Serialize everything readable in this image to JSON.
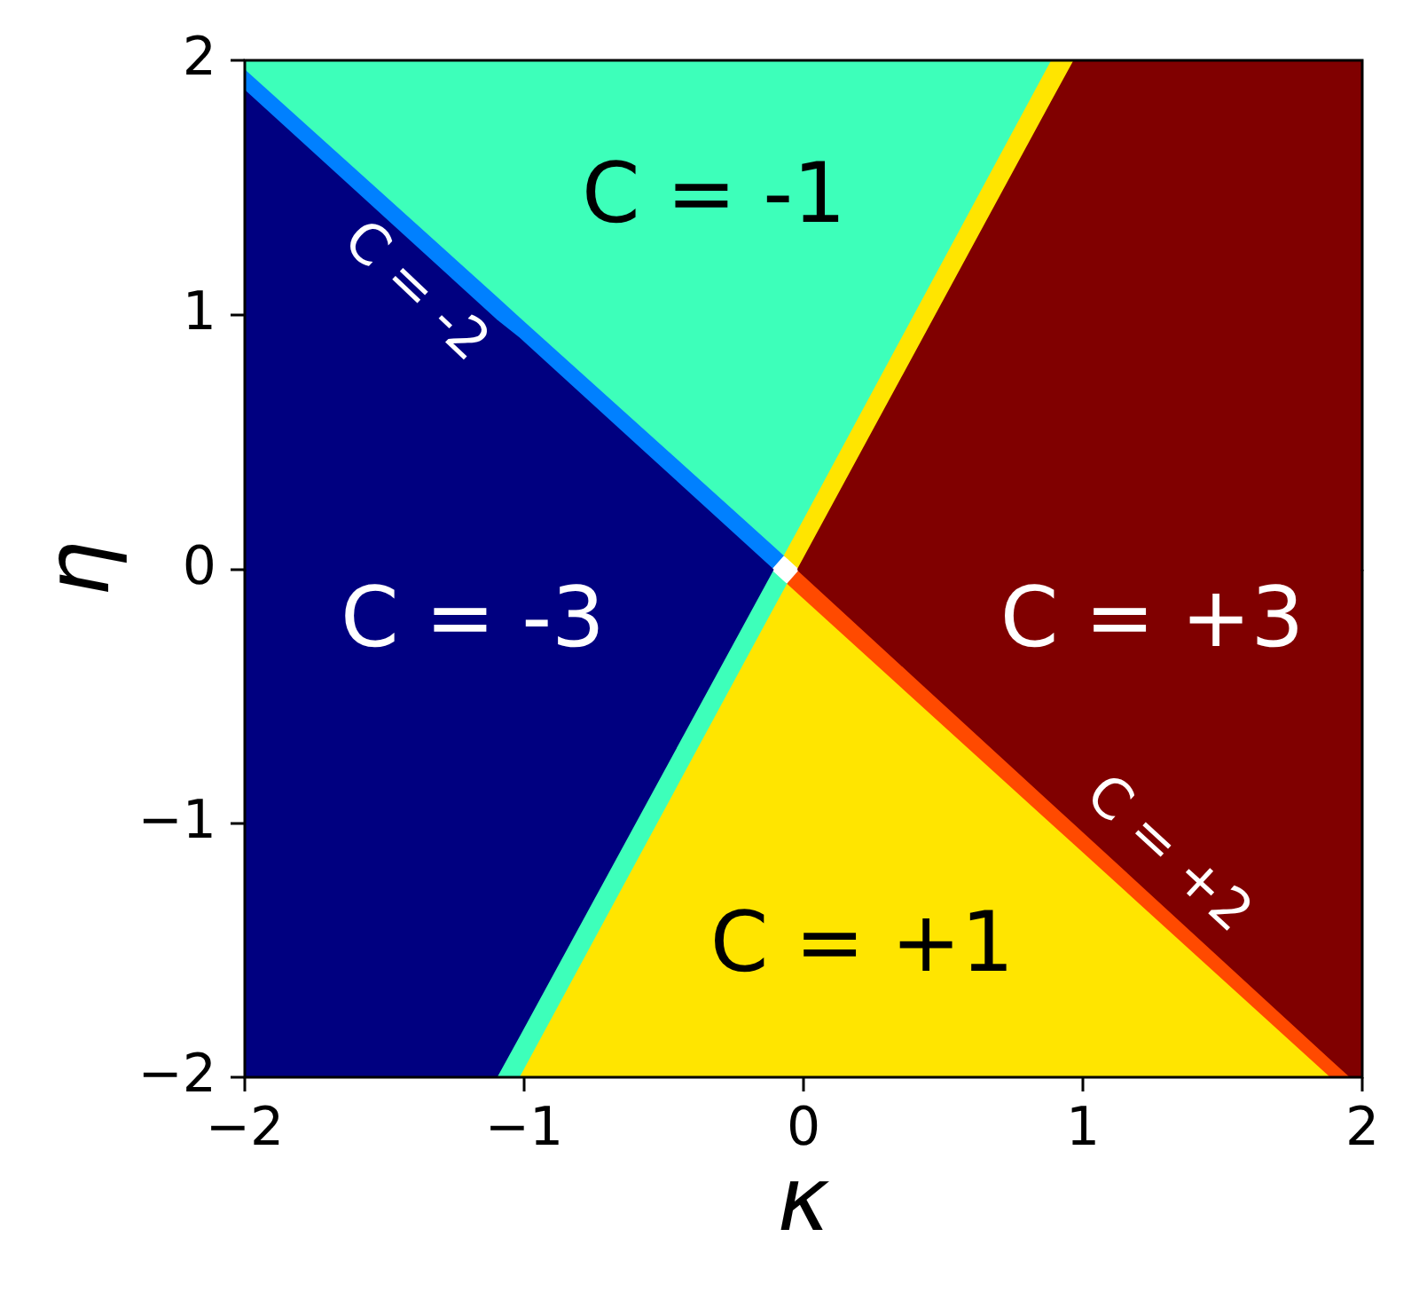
{
  "chart_data": [
    {
      "type": "area",
      "stacked": true,
      "ylabel": "η",
      "xlim": [
        -2,
        2
      ],
      "ylim": [
        0,
        2
      ],
      "yticks": [
        0,
        1,
        2
      ],
      "tick_labels": "y",
      "x": [
        -2,
        -1.1,
        -1.02,
        -0.11,
        -0.07,
        -0.06,
        -0.02,
        0.89,
        0.97,
        1.89,
        1.96,
        2
      ],
      "series": [
        {
          "color": "#000080",
          "values": [
            1.88,
            0.98,
            0.91,
            0,
            null,
            null,
            null,
            null,
            null,
            null,
            null,
            null
          ]
        },
        {
          "color": "#800000",
          "values": [
            null,
            null,
            null,
            null,
            null,
            null,
            0,
            1.84,
            2,
            2,
            2,
            2
          ]
        },
        {
          "color": "#ffffff",
          "values": [
            null,
            null,
            null,
            0,
            0.05,
            0.04,
            0,
            null,
            null,
            null,
            null,
            null
          ]
        },
        {
          "name": "C = -2",
          "color": "#0080ff",
          "values": [
            0.08,
            0.09,
            0.08,
            0.09,
            0,
            null,
            null,
            null,
            null,
            null,
            null,
            null
          ]
        },
        {
          "color": "#ffe500",
          "values": [
            null,
            null,
            null,
            null,
            0,
            0.03,
            0.15,
            0.16,
            0,
            null,
            null,
            null
          ]
        },
        {
          "name": "C = -1",
          "color": "#3dffba",
          "values": [
            0.04,
            0.93,
            1.01,
            1.91,
            1.95,
            1.93,
            1.85,
            0,
            null,
            null,
            null,
            null
          ]
        }
      ]
    },
    {
      "type": "area",
      "stacked": true,
      "xlabel": "κ",
      "xlim": [
        -2,
        2
      ],
      "ylim": [
        -2,
        0
      ],
      "xticks": [
        {
          "value": -2,
          "label": "−2"
        },
        {
          "value": -1,
          "label": "−1"
        },
        0,
        1,
        2
      ],
      "yticks": [
        {
          "value": -2,
          "label": "−2"
        },
        {
          "value": -1,
          "label": "−1"
        }
      ],
      "x": [
        -2,
        -1.1,
        -1.02,
        -0.11,
        -0.07,
        -0.06,
        -0.02,
        0.89,
        0.97,
        1.89,
        1.96,
        2
      ],
      "series": [
        {
          "name": "C = -3",
          "color": "#000080",
          "values": [
            -2,
            -2,
            -1.84,
            0,
            null,
            null,
            null,
            null,
            null,
            null,
            null,
            null
          ]
        },
        {
          "name": "C = +3",
          "color": "#800000",
          "values": [
            null,
            null,
            null,
            null,
            null,
            null,
            0,
            -0.92,
            -1.0,
            -1.93,
            -2,
            -2
          ]
        },
        {
          "color": "#ffffff",
          "values": [
            null,
            null,
            null,
            0,
            -0.04,
            -0.05,
            0,
            null,
            null,
            null,
            null,
            null
          ]
        },
        {
          "color": "#3dffba",
          "values": [
            null,
            0,
            -0.16,
            -0.15,
            -0.03,
            0,
            null,
            null,
            null,
            null,
            null,
            null
          ]
        },
        {
          "name": "C = +2",
          "color": "#ff4a00",
          "values": [
            null,
            null,
            null,
            null,
            null,
            0,
            -0.09,
            -0.08,
            -0.08,
            -0.07,
            0,
            null
          ]
        },
        {
          "name": "C = +1",
          "color": "#ffe500",
          "values": [
            null,
            null,
            0,
            -1.85,
            -1.93,
            -1.95,
            -1.91,
            -1.0,
            -0.92,
            0,
            null,
            null
          ]
        }
      ]
    }
  ]
}
